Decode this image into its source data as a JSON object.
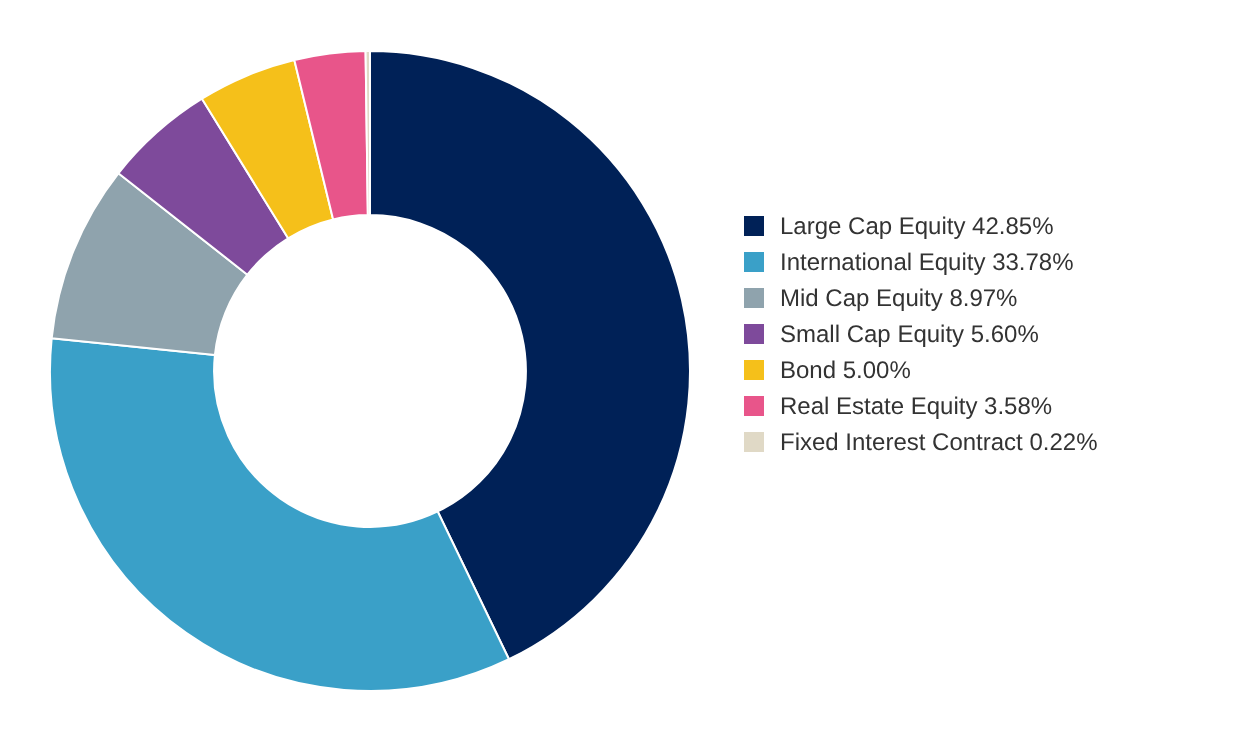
{
  "chart_data": {
    "type": "donut",
    "categories": [
      "Large Cap Equity",
      "International Equity",
      "Mid Cap Equity",
      "Small Cap Equity",
      "Bond",
      "Real Estate Equity",
      "Fixed Interest Contract"
    ],
    "values": [
      42.85,
      33.78,
      8.97,
      5.6,
      5.0,
      3.58,
      0.22
    ],
    "value_labels": [
      "42.85%",
      "33.78%",
      "8.97%",
      "5.60%",
      "5.00%",
      "3.58%",
      "0.22%"
    ],
    "colors": [
      "#002157",
      "#3aa0c8",
      "#8fa3ad",
      "#7e4a9b",
      "#f5c01a",
      "#e8558a",
      "#e0d9c6"
    ],
    "legend": "right"
  }
}
